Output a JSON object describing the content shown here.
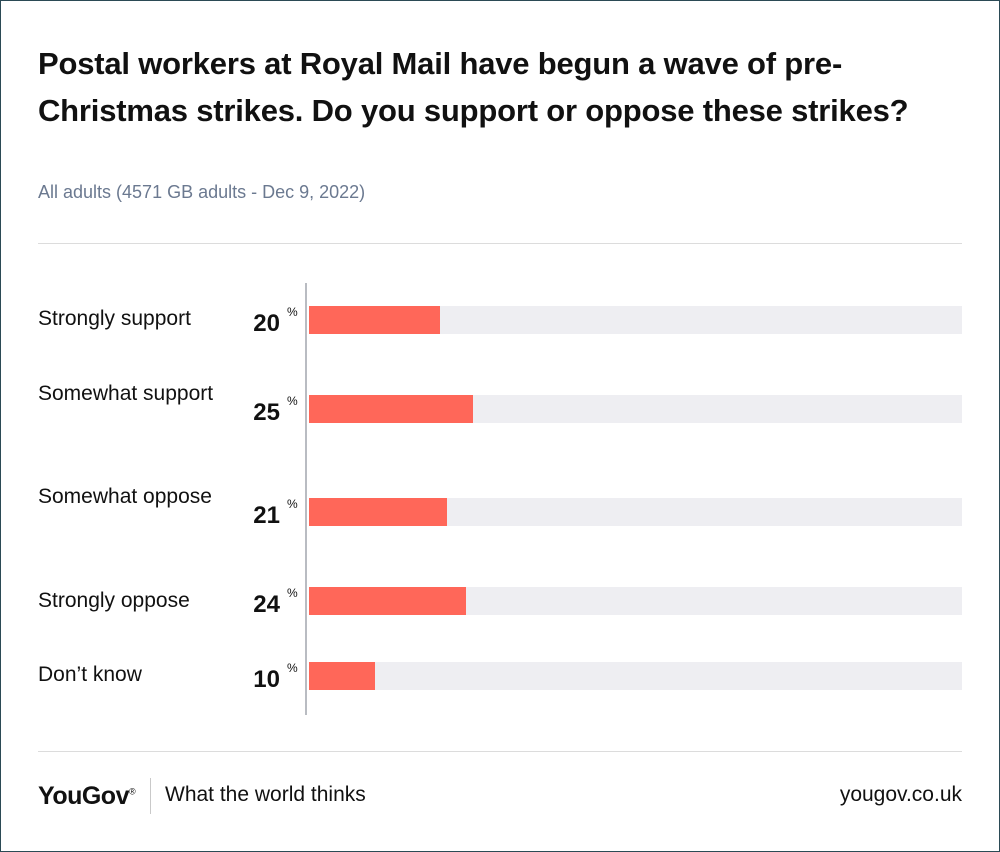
{
  "chart_data": {
    "type": "bar",
    "orientation": "horizontal",
    "title": "Postal workers at Royal Mail have begun a wave of pre-Christmas strikes. Do you support or oppose these strikes?",
    "subtitle": "All adults (4571 GB adults - Dec 9, 2022)",
    "categories": [
      "Strongly support",
      "Somewhat support",
      "Somewhat oppose",
      "Strongly oppose",
      "Don’t know"
    ],
    "values": [
      20,
      25,
      21,
      24,
      10
    ],
    "value_suffix": "%",
    "xlim": [
      0,
      100
    ],
    "bar_color": "#ff6759",
    "track_color": "#eeeef2"
  },
  "footer": {
    "brand": "YouGov",
    "brand_mark": "®",
    "tagline": "What the world thinks",
    "url": "yougov.co.uk"
  }
}
